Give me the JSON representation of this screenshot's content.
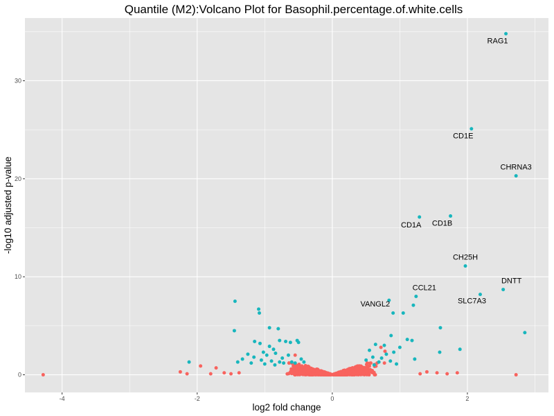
{
  "chart_data": {
    "type": "scatter",
    "title": "Quantile (M2):Volcano Plot for Basophil.percentage.of.white.cells",
    "xlabel": "log2 fold change",
    "ylabel": "-log10 adjusted p-value",
    "xlim": [
      -4.55,
      3.2
    ],
    "ylim": [
      -1.8,
      36.4
    ],
    "xticks": [
      -4,
      -2,
      0,
      2
    ],
    "yticks": [
      0,
      10,
      20,
      30
    ],
    "grid": true,
    "legend": "none",
    "colors": {
      "significant": "#18b6bd",
      "not_significant": "#f8635e",
      "panel": "#e5e5e5",
      "grid": "#ffffff"
    },
    "highlighted_points": [
      {
        "label": "RAG1",
        "x": 2.57,
        "y": 34.8
      },
      {
        "label": "CD1E",
        "x": 2.06,
        "y": 25.1
      },
      {
        "label": "CHRNA3",
        "x": 2.72,
        "y": 20.3
      },
      {
        "label": "CD1A",
        "x": 1.29,
        "y": 16.1
      },
      {
        "label": "CD1B",
        "x": 1.75,
        "y": 16.2
      },
      {
        "label": "CH25H",
        "x": 1.97,
        "y": 11.1
      },
      {
        "label": "DNTT",
        "x": 2.53,
        "y": 8.7
      },
      {
        "label": "SLC7A3",
        "x": 2.19,
        "y": 8.2
      },
      {
        "label": "CCL21",
        "x": 1.24,
        "y": 8.0
      },
      {
        "label": "VANGL2",
        "x": 0.84,
        "y": 7.6
      }
    ],
    "significant_points": [
      [
        -1.44,
        7.5
      ],
      [
        -1.09,
        6.7
      ],
      [
        -1.08,
        6.3
      ],
      [
        -1.45,
        4.5
      ],
      [
        -0.93,
        4.8
      ],
      [
        -0.8,
        4.7
      ],
      [
        -1.15,
        3.4
      ],
      [
        -1.07,
        3.2
      ],
      [
        -0.78,
        3.5
      ],
      [
        -0.69,
        3.4
      ],
      [
        -0.62,
        3.3
      ],
      [
        -0.52,
        3.5
      ],
      [
        -0.5,
        3.3
      ],
      [
        -0.93,
        2.9
      ],
      [
        -0.87,
        2.6
      ],
      [
        -0.84,
        2.2
      ],
      [
        -0.97,
        2.0
      ],
      [
        -1.25,
        2.1
      ],
      [
        -1.33,
        1.6
      ],
      [
        -1.16,
        1.8
      ],
      [
        -1.05,
        1.5
      ],
      [
        -0.9,
        1.4
      ],
      [
        -0.78,
        1.3
      ],
      [
        -0.72,
        1.2
      ],
      [
        -0.6,
        1.3
      ],
      [
        -0.55,
        1.2
      ],
      [
        -1.4,
        1.3
      ],
      [
        -1.2,
        1.2
      ],
      [
        -0.65,
        2.0
      ],
      [
        -0.46,
        1.6
      ],
      [
        -0.42,
        1.3
      ],
      [
        -1.0,
        1.1
      ],
      [
        -0.85,
        1.0
      ],
      [
        -0.74,
        1.7
      ],
      [
        -2.12,
        1.3
      ],
      [
        -1.02,
        2.3
      ],
      [
        0.9,
        6.3
      ],
      [
        1.05,
        6.3
      ],
      [
        1.6,
        4.8
      ],
      [
        0.87,
        4.0
      ],
      [
        1.11,
        3.6
      ],
      [
        1.18,
        3.5
      ],
      [
        0.64,
        3.1
      ],
      [
        0.77,
        3.0
      ],
      [
        1.0,
        2.8
      ],
      [
        1.59,
        2.3
      ],
      [
        1.89,
        2.6
      ],
      [
        2.85,
        4.3
      ],
      [
        1.2,
        7.1
      ],
      [
        0.55,
        2.5
      ],
      [
        0.6,
        1.8
      ],
      [
        0.69,
        1.3
      ],
      [
        0.73,
        1.7
      ],
      [
        0.86,
        1.4
      ],
      [
        0.95,
        1.1
      ],
      [
        1.22,
        1.6
      ],
      [
        0.5,
        1.5
      ],
      [
        0.62,
        1.0
      ],
      [
        0.91,
        2.3
      ],
      [
        0.8,
        2.1
      ]
    ]
  }
}
